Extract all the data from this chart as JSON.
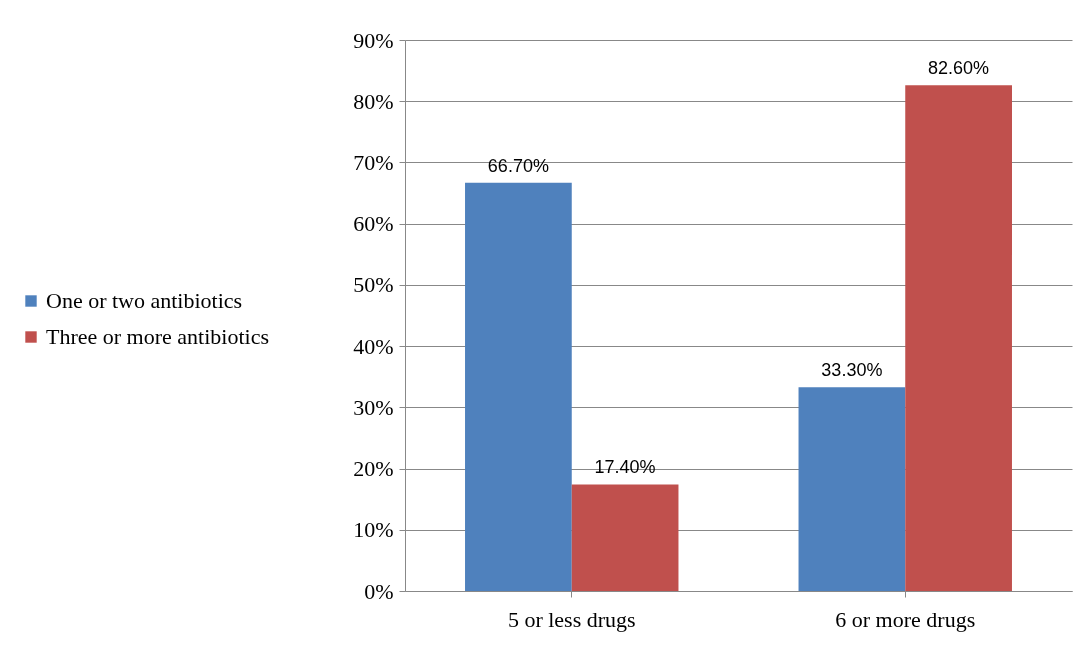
{
  "chart_data": {
    "type": "bar",
    "categories": [
      "5 or less drugs",
      "6 or more drugs"
    ],
    "series": [
      {
        "name": "One or two antibiotics",
        "color": "#4f81bd",
        "values": [
          66.7,
          33.3
        ],
        "value_labels": [
          "66.70%",
          "33.30%"
        ]
      },
      {
        "name": "Three or more antibiotics",
        "color": "#c0504d",
        "values": [
          17.4,
          82.6
        ],
        "value_labels": [
          "17.40%",
          "82.60%"
        ]
      }
    ],
    "ylim": [
      0,
      90
    ],
    "yticks": [
      {
        "value": 0,
        "label": "0%"
      },
      {
        "value": 10,
        "label": "10%"
      },
      {
        "value": 20,
        "label": "20%"
      },
      {
        "value": 30,
        "label": "30%"
      },
      {
        "value": 40,
        "label": "40%"
      },
      {
        "value": 50,
        "label": "50%"
      },
      {
        "value": 60,
        "label": "60%"
      },
      {
        "value": 70,
        "label": "70%"
      },
      {
        "value": 80,
        "label": "80%"
      },
      {
        "value": 90,
        "label": "90%"
      }
    ],
    "grid": "y",
    "legend": "left"
  }
}
